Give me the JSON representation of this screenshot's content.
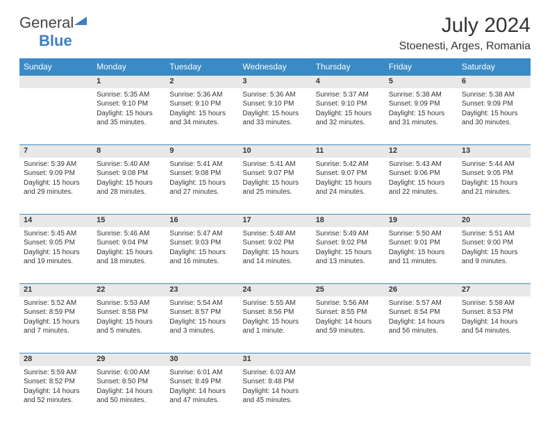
{
  "brand": {
    "part1": "General",
    "part2": "Blue"
  },
  "title": "July 2024",
  "location": "Stoenesti, Arges, Romania",
  "headers": [
    "Sunday",
    "Monday",
    "Tuesday",
    "Wednesday",
    "Thursday",
    "Friday",
    "Saturday"
  ],
  "colors": {
    "header_bg": "#3a8ac6",
    "header_fg": "#ffffff",
    "daynum_bg": "#e8e8e8",
    "row_border": "#3a8ac6",
    "text": "#333333",
    "brand_blue": "#3a7fc4"
  },
  "weeks": [
    [
      {
        "n": "",
        "sr": "",
        "ss": "",
        "dl": ""
      },
      {
        "n": "1",
        "sr": "Sunrise: 5:35 AM",
        "ss": "Sunset: 9:10 PM",
        "dl": "Daylight: 15 hours and 35 minutes."
      },
      {
        "n": "2",
        "sr": "Sunrise: 5:36 AM",
        "ss": "Sunset: 9:10 PM",
        "dl": "Daylight: 15 hours and 34 minutes."
      },
      {
        "n": "3",
        "sr": "Sunrise: 5:36 AM",
        "ss": "Sunset: 9:10 PM",
        "dl": "Daylight: 15 hours and 33 minutes."
      },
      {
        "n": "4",
        "sr": "Sunrise: 5:37 AM",
        "ss": "Sunset: 9:10 PM",
        "dl": "Daylight: 15 hours and 32 minutes."
      },
      {
        "n": "5",
        "sr": "Sunrise: 5:38 AM",
        "ss": "Sunset: 9:09 PM",
        "dl": "Daylight: 15 hours and 31 minutes."
      },
      {
        "n": "6",
        "sr": "Sunrise: 5:38 AM",
        "ss": "Sunset: 9:09 PM",
        "dl": "Daylight: 15 hours and 30 minutes."
      }
    ],
    [
      {
        "n": "7",
        "sr": "Sunrise: 5:39 AM",
        "ss": "Sunset: 9:09 PM",
        "dl": "Daylight: 15 hours and 29 minutes."
      },
      {
        "n": "8",
        "sr": "Sunrise: 5:40 AM",
        "ss": "Sunset: 9:08 PM",
        "dl": "Daylight: 15 hours and 28 minutes."
      },
      {
        "n": "9",
        "sr": "Sunrise: 5:41 AM",
        "ss": "Sunset: 9:08 PM",
        "dl": "Daylight: 15 hours and 27 minutes."
      },
      {
        "n": "10",
        "sr": "Sunrise: 5:41 AM",
        "ss": "Sunset: 9:07 PM",
        "dl": "Daylight: 15 hours and 25 minutes."
      },
      {
        "n": "11",
        "sr": "Sunrise: 5:42 AM",
        "ss": "Sunset: 9:07 PM",
        "dl": "Daylight: 15 hours and 24 minutes."
      },
      {
        "n": "12",
        "sr": "Sunrise: 5:43 AM",
        "ss": "Sunset: 9:06 PM",
        "dl": "Daylight: 15 hours and 22 minutes."
      },
      {
        "n": "13",
        "sr": "Sunrise: 5:44 AM",
        "ss": "Sunset: 9:05 PM",
        "dl": "Daylight: 15 hours and 21 minutes."
      }
    ],
    [
      {
        "n": "14",
        "sr": "Sunrise: 5:45 AM",
        "ss": "Sunset: 9:05 PM",
        "dl": "Daylight: 15 hours and 19 minutes."
      },
      {
        "n": "15",
        "sr": "Sunrise: 5:46 AM",
        "ss": "Sunset: 9:04 PM",
        "dl": "Daylight: 15 hours and 18 minutes."
      },
      {
        "n": "16",
        "sr": "Sunrise: 5:47 AM",
        "ss": "Sunset: 9:03 PM",
        "dl": "Daylight: 15 hours and 16 minutes."
      },
      {
        "n": "17",
        "sr": "Sunrise: 5:48 AM",
        "ss": "Sunset: 9:02 PM",
        "dl": "Daylight: 15 hours and 14 minutes."
      },
      {
        "n": "18",
        "sr": "Sunrise: 5:49 AM",
        "ss": "Sunset: 9:02 PM",
        "dl": "Daylight: 15 hours and 13 minutes."
      },
      {
        "n": "19",
        "sr": "Sunrise: 5:50 AM",
        "ss": "Sunset: 9:01 PM",
        "dl": "Daylight: 15 hours and 11 minutes."
      },
      {
        "n": "20",
        "sr": "Sunrise: 5:51 AM",
        "ss": "Sunset: 9:00 PM",
        "dl": "Daylight: 15 hours and 9 minutes."
      }
    ],
    [
      {
        "n": "21",
        "sr": "Sunrise: 5:52 AM",
        "ss": "Sunset: 8:59 PM",
        "dl": "Daylight: 15 hours and 7 minutes."
      },
      {
        "n": "22",
        "sr": "Sunrise: 5:53 AM",
        "ss": "Sunset: 8:58 PM",
        "dl": "Daylight: 15 hours and 5 minutes."
      },
      {
        "n": "23",
        "sr": "Sunrise: 5:54 AM",
        "ss": "Sunset: 8:57 PM",
        "dl": "Daylight: 15 hours and 3 minutes."
      },
      {
        "n": "24",
        "sr": "Sunrise: 5:55 AM",
        "ss": "Sunset: 8:56 PM",
        "dl": "Daylight: 15 hours and 1 minute."
      },
      {
        "n": "25",
        "sr": "Sunrise: 5:56 AM",
        "ss": "Sunset: 8:55 PM",
        "dl": "Daylight: 14 hours and 59 minutes."
      },
      {
        "n": "26",
        "sr": "Sunrise: 5:57 AM",
        "ss": "Sunset: 8:54 PM",
        "dl": "Daylight: 14 hours and 56 minutes."
      },
      {
        "n": "27",
        "sr": "Sunrise: 5:58 AM",
        "ss": "Sunset: 8:53 PM",
        "dl": "Daylight: 14 hours and 54 minutes."
      }
    ],
    [
      {
        "n": "28",
        "sr": "Sunrise: 5:59 AM",
        "ss": "Sunset: 8:52 PM",
        "dl": "Daylight: 14 hours and 52 minutes."
      },
      {
        "n": "29",
        "sr": "Sunrise: 6:00 AM",
        "ss": "Sunset: 8:50 PM",
        "dl": "Daylight: 14 hours and 50 minutes."
      },
      {
        "n": "30",
        "sr": "Sunrise: 6:01 AM",
        "ss": "Sunset: 8:49 PM",
        "dl": "Daylight: 14 hours and 47 minutes."
      },
      {
        "n": "31",
        "sr": "Sunrise: 6:03 AM",
        "ss": "Sunset: 8:48 PM",
        "dl": "Daylight: 14 hours and 45 minutes."
      },
      {
        "n": "",
        "sr": "",
        "ss": "",
        "dl": ""
      },
      {
        "n": "",
        "sr": "",
        "ss": "",
        "dl": ""
      },
      {
        "n": "",
        "sr": "",
        "ss": "",
        "dl": ""
      }
    ]
  ]
}
